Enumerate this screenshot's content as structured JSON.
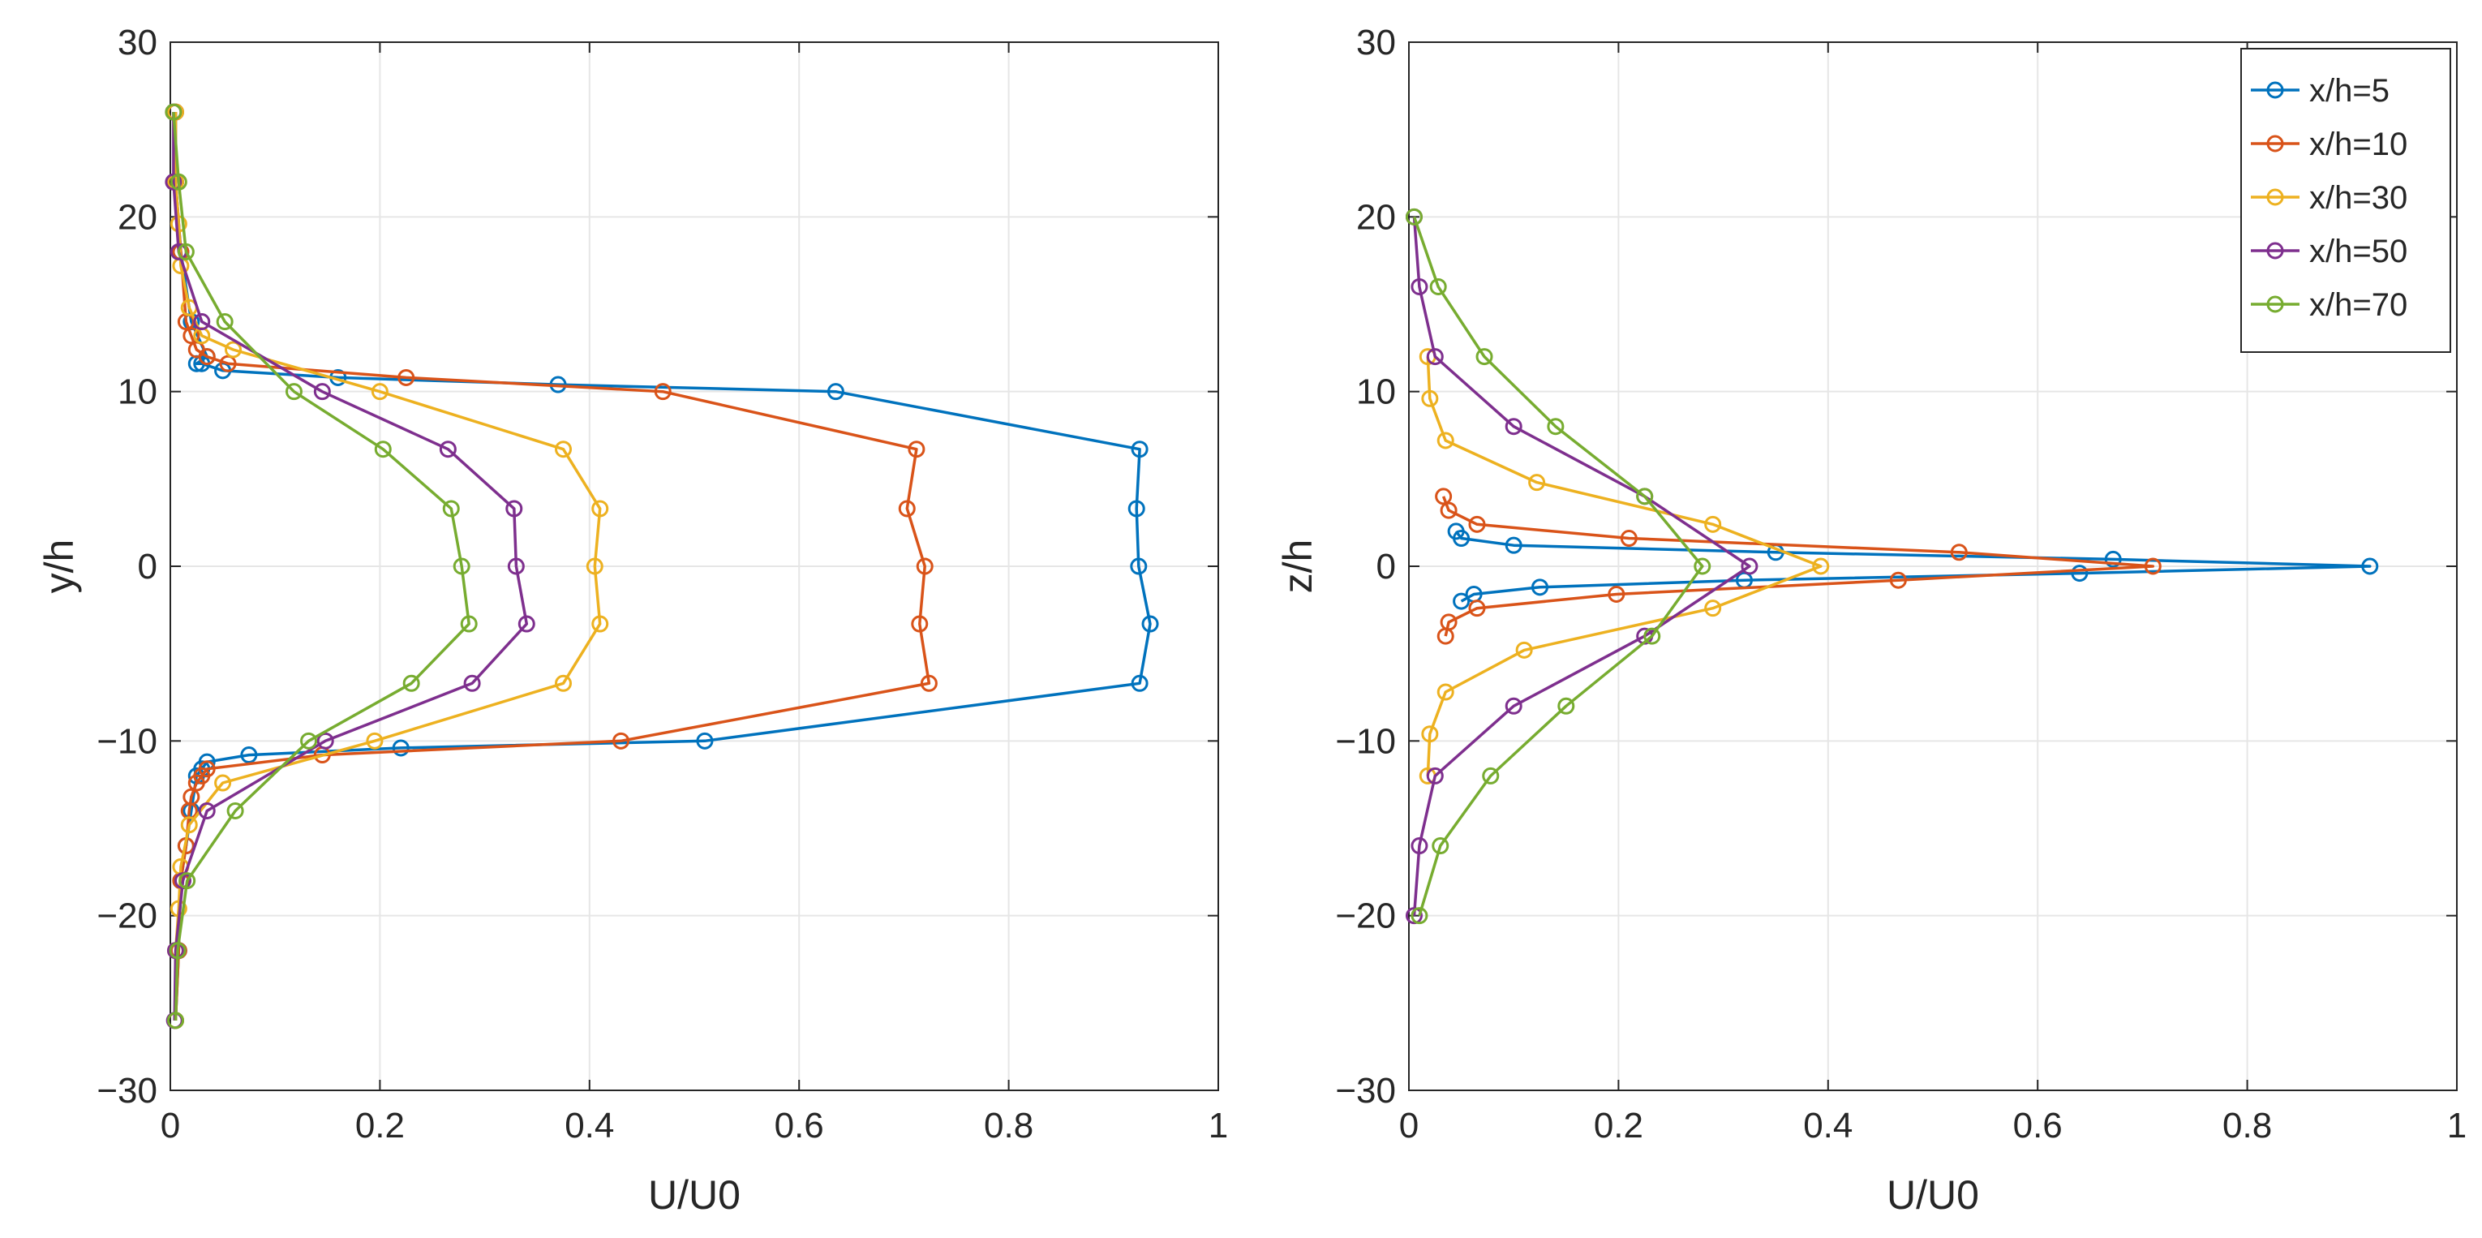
{
  "chart_data": [
    {
      "type": "line",
      "panel": "left",
      "xlabel": "U/U0",
      "ylabel": "y/h",
      "xlim": [
        0,
        1
      ],
      "ylim": [
        -30,
        30
      ],
      "xticks": [
        0,
        0.2,
        0.4,
        0.6,
        0.8,
        1
      ],
      "xtick_labels": [
        "0",
        "0.2",
        "0.4",
        "0.6",
        "0.8",
        "1"
      ],
      "yticks": [
        -30,
        -20,
        -10,
        0,
        10,
        20,
        30
      ],
      "ytick_labels": [
        "−30",
        "−20",
        "−10",
        "0",
        "10",
        "20",
        "30"
      ],
      "grid": true,
      "legend": false,
      "series": [
        {
          "name": "x/h=5",
          "color": "#0072BD",
          "marker": "circle",
          "x": [
            0.005,
            0.005,
            0.01,
            0.02,
            0.035,
            0.025,
            0.03,
            0.05,
            0.16,
            0.37,
            0.635,
            0.925,
            0.922,
            0.924,
            0.935,
            0.925,
            0.51,
            0.22,
            0.075,
            0.035,
            0.03,
            0.025,
            0.02,
            0.015,
            0.01,
            0.008,
            0.005
          ],
          "y": [
            26,
            22,
            18,
            14,
            12,
            11.6,
            11.6,
            11.2,
            10.8,
            10.4,
            10,
            6.7,
            3.3,
            0,
            -3.3,
            -6.7,
            -10,
            -10.4,
            -10.8,
            -11.2,
            -11.6,
            -12,
            -14,
            -16,
            -18,
            -22,
            -26
          ]
        },
        {
          "name": "x/h=10",
          "color": "#D95319",
          "marker": "circle",
          "x": [
            0.005,
            0.005,
            0.01,
            0.015,
            0.02,
            0.025,
            0.035,
            0.055,
            0.225,
            0.47,
            0.712,
            0.703,
            0.72,
            0.715,
            0.724,
            0.43,
            0.145,
            0.035,
            0.03,
            0.025,
            0.02,
            0.018,
            0.015,
            0.01,
            0.008,
            0.005
          ],
          "y": [
            26,
            22,
            18,
            14,
            13.2,
            12.4,
            12,
            11.6,
            10.8,
            10,
            6.7,
            3.3,
            0,
            -3.3,
            -6.7,
            -10,
            -10.8,
            -11.6,
            -12,
            -12.4,
            -13.2,
            -14,
            -16,
            -18,
            -22,
            -26
          ]
        },
        {
          "name": "x/h=30",
          "color": "#EDB120",
          "marker": "circle",
          "x": [
            0.005,
            0.005,
            0.008,
            0.01,
            0.018,
            0.03,
            0.06,
            0.2,
            0.375,
            0.41,
            0.405,
            0.41,
            0.375,
            0.195,
            0.05,
            0.018,
            0.01,
            0.008,
            0.005,
            0.005,
            0.005
          ],
          "y": [
            26,
            22,
            19.6,
            17.2,
            14.8,
            13.2,
            12.4,
            10,
            6.7,
            3.3,
            0,
            -3.3,
            -6.7,
            -10,
            -12.4,
            -14.8,
            -17.2,
            -19.6,
            -22,
            -26,
            -26
          ]
        },
        {
          "name": "x/h=50",
          "color": "#7E2F8E",
          "marker": "circle",
          "x": [
            0.003,
            0.003,
            0.008,
            0.03,
            0.145,
            0.265,
            0.328,
            0.33,
            0.34,
            0.288,
            0.148,
            0.035,
            0.012,
            0.005,
            0.004
          ],
          "y": [
            26,
            22,
            18,
            14,
            10,
            6.7,
            3.3,
            0,
            -3.3,
            -6.7,
            -10,
            -14,
            -18,
            -22,
            -26
          ]
        },
        {
          "name": "x/h=70",
          "color": "#77AC30",
          "marker": "circle",
          "x": [
            0.003,
            0.008,
            0.015,
            0.052,
            0.118,
            0.203,
            0.268,
            0.278,
            0.285,
            0.23,
            0.132,
            0.062,
            0.016,
            0.007,
            0.005
          ],
          "y": [
            26,
            22,
            18,
            14,
            10,
            6.7,
            3.3,
            0,
            -3.3,
            -6.7,
            -10,
            -14,
            -18,
            -22,
            -26
          ]
        }
      ]
    },
    {
      "type": "line",
      "panel": "right",
      "xlabel": "U/U0",
      "ylabel": "z/h",
      "xlim": [
        0,
        1
      ],
      "ylim": [
        -30,
        30
      ],
      "xticks": [
        0,
        0.2,
        0.4,
        0.6,
        0.8,
        1
      ],
      "xtick_labels": [
        "0",
        "0.2",
        "0.4",
        "0.6",
        "0.8",
        "1"
      ],
      "yticks": [
        -30,
        -20,
        -10,
        0,
        10,
        20,
        30
      ],
      "ytick_labels": [
        "−30",
        "−20",
        "−10",
        "0",
        "10",
        "20",
        "30"
      ],
      "grid": true,
      "legend": true,
      "legend_location": "top-right",
      "series": [
        {
          "name": "x/h=5",
          "color": "#0072BD",
          "marker": "circle",
          "x": [
            0.045,
            0.05,
            0.1,
            0.35,
            0.672,
            0.917,
            0.64,
            0.32,
            0.125,
            0.062,
            0.05
          ],
          "y": [
            2,
            1.6,
            1.2,
            0.8,
            0.4,
            0,
            -0.4,
            -0.8,
            -1.2,
            -1.6,
            -2
          ]
        },
        {
          "name": "x/h=10",
          "color": "#D95319",
          "marker": "circle",
          "x": [
            0.033,
            0.038,
            0.065,
            0.21,
            0.525,
            0.71,
            0.467,
            0.198,
            0.065,
            0.038,
            0.035
          ],
          "y": [
            4,
            3.2,
            2.4,
            1.6,
            0.8,
            0,
            -0.8,
            -1.6,
            -2.4,
            -3.2,
            -4
          ]
        },
        {
          "name": "x/h=30",
          "color": "#EDB120",
          "marker": "circle",
          "x": [
            0.018,
            0.02,
            0.035,
            0.122,
            0.29,
            0.393,
            0.29,
            0.11,
            0.035,
            0.02,
            0.018
          ],
          "y": [
            12,
            9.6,
            7.2,
            4.8,
            2.4,
            0,
            -2.4,
            -4.8,
            -7.2,
            -9.6,
            -12
          ]
        },
        {
          "name": "x/h=50",
          "color": "#7E2F8E",
          "marker": "circle",
          "x": [
            0.005,
            0.01,
            0.025,
            0.1,
            0.225,
            0.325,
            0.225,
            0.1,
            0.025,
            0.01,
            0.005
          ],
          "y": [
            20,
            16,
            12,
            8,
            4,
            0,
            -4,
            -8,
            -12,
            -16,
            -20
          ]
        },
        {
          "name": "x/h=70",
          "color": "#77AC30",
          "marker": "circle",
          "x": [
            0.005,
            0.028,
            0.072,
            0.14,
            0.225,
            0.28,
            0.232,
            0.15,
            0.078,
            0.03,
            0.01
          ],
          "y": [
            20,
            16,
            12,
            8,
            4,
            0,
            -4,
            -8,
            -12,
            -16,
            -20
          ]
        }
      ]
    }
  ]
}
